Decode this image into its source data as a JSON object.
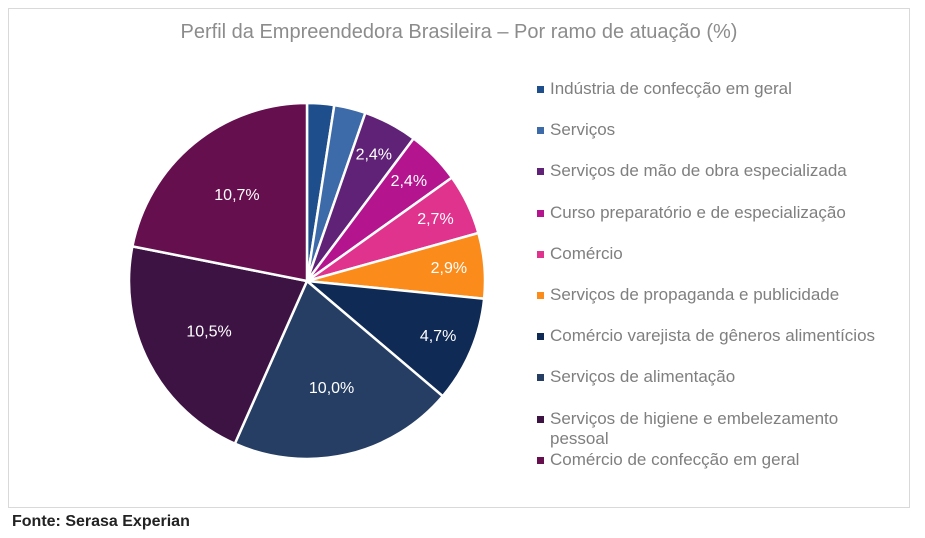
{
  "chart_data": {
    "type": "pie",
    "title": "Perfil da Empreendedora Brasileira – Por ramo de atuação (%)",
    "legend_position": "right",
    "slices": [
      {
        "name": "Indústria de confecção em geral",
        "value": 1.2,
        "label": "",
        "color": "#1f4e8c"
      },
      {
        "name": "Serviços",
        "value": 1.4,
        "label": "",
        "color": "#3d6aa8"
      },
      {
        "name": "Serviços de mão de obra especializada",
        "value": 2.4,
        "label": "2,4%",
        "color": "#5f2277"
      },
      {
        "name": "Curso preparatório e de especialização",
        "value": 2.4,
        "label": "2,4%",
        "color": "#b4158f"
      },
      {
        "name": "Comércio",
        "value": 2.7,
        "label": "2,7%",
        "color": "#e0338e"
      },
      {
        "name": "Serviços de propaganda e publicidade",
        "value": 2.9,
        "label": "2,9%",
        "color": "#fb8c1c"
      },
      {
        "name": "Comércio varejista de gêneros alimentícios",
        "value": 4.7,
        "label": "4,7%",
        "color": "#0f2a55"
      },
      {
        "name": "Serviços de alimentação",
        "value": 10.0,
        "label": "10,0%",
        "color": "#263e64"
      },
      {
        "name": "Serviços de higiene e embelezamento pessoal",
        "value": 10.5,
        "label": "10,5%",
        "color": "#3d1344"
      },
      {
        "name": "Comércio de confecção em geral",
        "value": 10.7,
        "label": "10,7%",
        "color": "#650f4e"
      }
    ]
  },
  "source": "Fonte: Serasa Experian"
}
